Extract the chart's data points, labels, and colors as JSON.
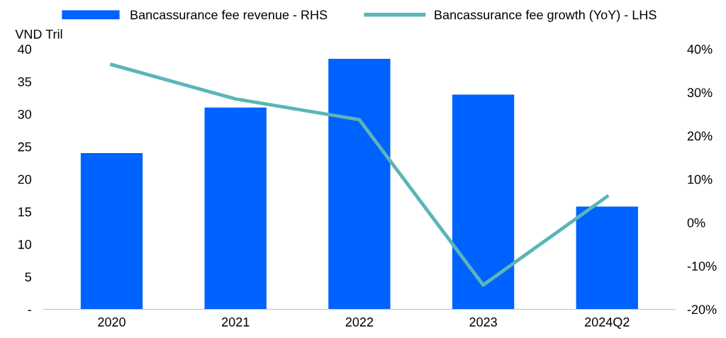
{
  "chart_data": {
    "type": "bar",
    "ylabel": "VND Tril",
    "categories": [
      "2020",
      "2021",
      "2022",
      "2023",
      "2024Q2"
    ],
    "series": [
      {
        "name": "Bancassurance fee revenue - RHS",
        "color": "#0062ff",
        "values": [
          24.0,
          31.0,
          38.5,
          33.0,
          15.8
        ]
      },
      {
        "name": "Bancassurance fee growth (YoY) - LHS",
        "type": "line",
        "axis": "y2",
        "color": "#5ab5b8",
        "values": [
          36.4,
          28.5,
          23.7,
          -14.4,
          6.0
        ]
      }
    ],
    "ylim": [
      0,
      40
    ],
    "yticks": [
      {
        "value": 0,
        "label": "-"
      },
      5,
      10,
      15,
      20,
      25,
      30,
      35,
      40
    ],
    "y2lim": [
      -20,
      40
    ],
    "y2ticks": [
      {
        "value": -20,
        "label": "-20%"
      },
      {
        "value": -10,
        "label": "-10%"
      },
      {
        "value": 0,
        "label": "0%"
      },
      {
        "value": 10,
        "label": "10%"
      },
      {
        "value": 20,
        "label": "20%"
      },
      {
        "value": 30,
        "label": "30%"
      },
      {
        "value": 40,
        "label": "40%"
      }
    ],
    "grid": false,
    "legend": "top",
    "marker": "none",
    "line_style": "solid"
  }
}
